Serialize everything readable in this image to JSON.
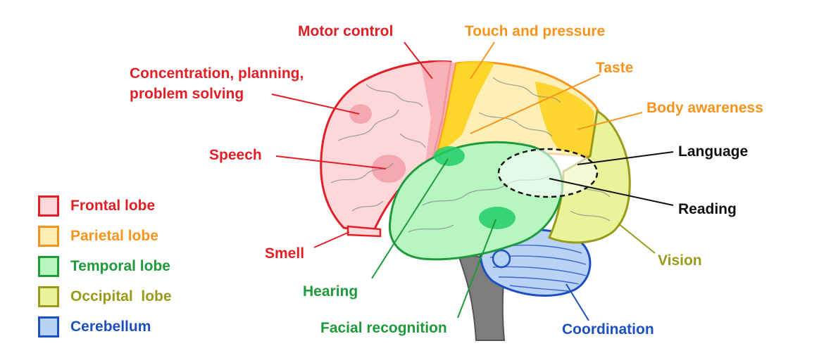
{
  "colors": {
    "frontal": {
      "fill": "#fdd7da",
      "stroke": "#e21f26"
    },
    "parietal": {
      "fill": "#fdefb5",
      "stroke": "#f7941d"
    },
    "temporal": {
      "fill": "#b7f5c1",
      "stroke": "#1e9a3a"
    },
    "occipital": {
      "fill": "#e8f39a",
      "stroke": "#9a9a1a"
    },
    "cerebellum": {
      "fill": "#b9d2f5",
      "stroke": "#1c4fc0"
    },
    "dark_label": "#111111"
  },
  "legend": [
    {
      "label": "Frontal lobe",
      "key": "frontal"
    },
    {
      "label": "Parietal lobe",
      "key": "parietal"
    },
    {
      "label": "Temporal lobe",
      "key": "temporal"
    },
    {
      "label": "Occipital  lobe",
      "key": "occipital"
    },
    {
      "label": "Cerebellum",
      "key": "cerebellum"
    }
  ],
  "labels": {
    "motor_control": "Motor control",
    "concentration_line1": "Concentration, planning,",
    "concentration_line2": "problem solving",
    "speech": "Speech",
    "smell": "Smell",
    "hearing": "Hearing",
    "facial_recognition": "Facial recognition",
    "touch_pressure": "Touch and pressure",
    "taste": "Taste",
    "body_awareness": "Body awareness",
    "language": "Language",
    "reading": "Reading",
    "vision": "Vision",
    "coordination": "Coordination"
  }
}
